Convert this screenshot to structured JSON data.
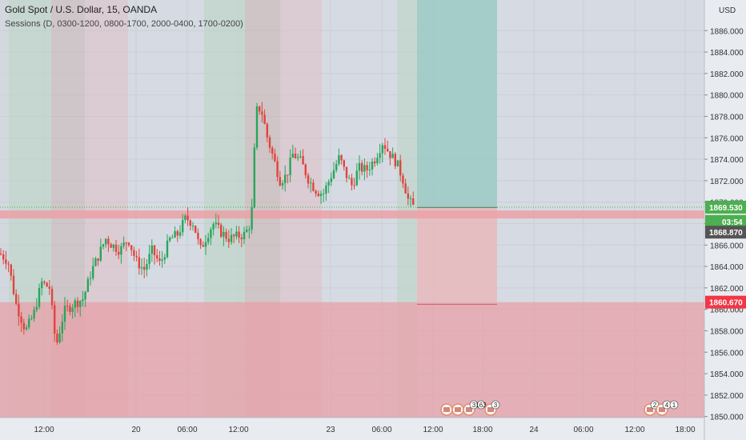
{
  "chart_data": {
    "type": "candlestick",
    "title": "Gold Spot / U.S. Dollar, 15, OANDA",
    "subtitle": "Sessions (D, 0300-1200, 0800-1700, 2000-0400, 1700-0200)",
    "currency": "USD",
    "y_ticks": [
      1850,
      1852,
      1854,
      1856,
      1858,
      1860,
      1862,
      1864,
      1866,
      1868,
      1870,
      1872,
      1874,
      1876,
      1878,
      1880,
      1882,
      1884,
      1886
    ],
    "x_ticks": [
      "12:00",
      "20",
      "06:00",
      "12:00",
      "23",
      "06:00",
      "12:00",
      "18:00",
      "24",
      "06:00",
      "12:00",
      "18:00"
    ],
    "price_labels": [
      {
        "value": "1869.530",
        "kind": "last",
        "color": "#4caf50"
      },
      {
        "value": "03:54",
        "kind": "countdown",
        "color": "#4caf50"
      },
      {
        "value": "1868.870",
        "kind": "entry",
        "color": "#555555"
      },
      {
        "value": "1860.670",
        "kind": "stop",
        "color": "#f23645"
      }
    ],
    "position": {
      "side": "long",
      "entry": 1868.87,
      "target": 1886.9,
      "stop": 1860.67
    },
    "events": [
      "3",
      "163",
      "3",
      "2",
      "4",
      "1"
    ],
    "colors": {
      "up": "#26a65b",
      "down": "#e0443e",
      "last_price": "#4caf50",
      "stop": "#f23645"
    },
    "grid": true
  }
}
